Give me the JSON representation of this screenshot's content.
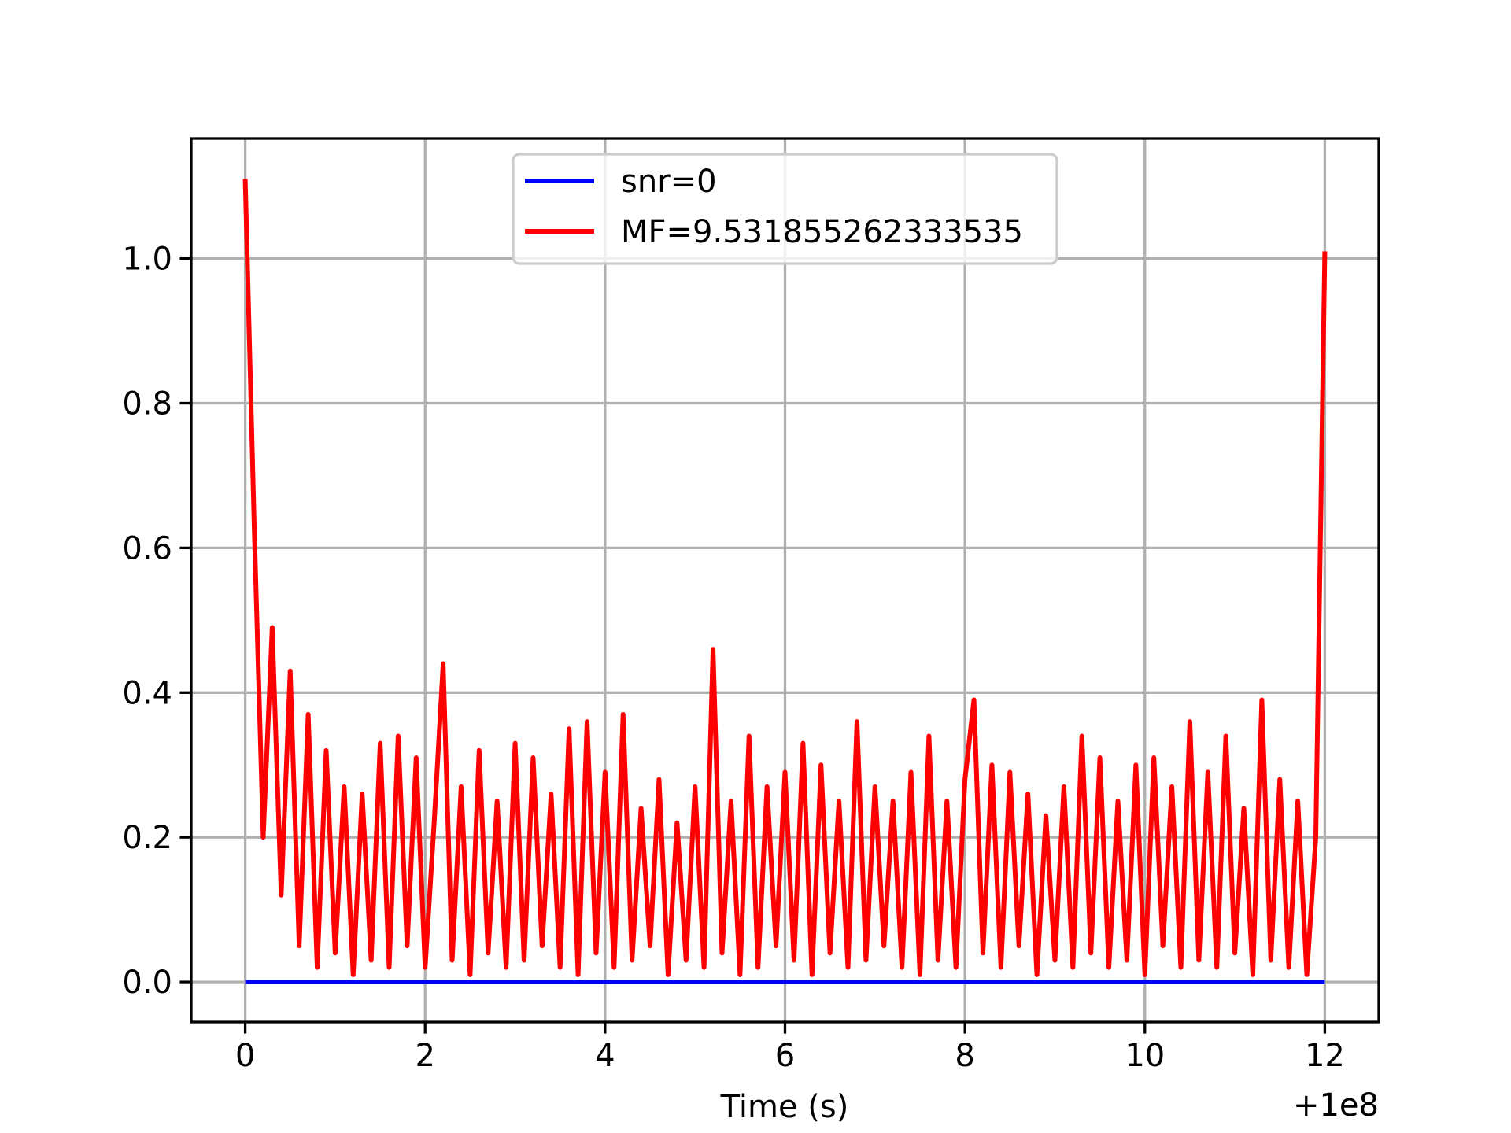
{
  "chart_data": {
    "type": "line",
    "xlabel": "Time (s)",
    "x_offset_label": "+1e8",
    "xlim": [
      -0.6,
      12.6
    ],
    "ylim": [
      -0.0554,
      1.166
    ],
    "xticks": [
      0,
      2,
      4,
      6,
      8,
      10,
      12
    ],
    "yticks": [
      {
        "value": 0,
        "label": "0.0"
      },
      0.2,
      0.4,
      0.6,
      0.8,
      {
        "value": 1,
        "label": "1.0"
      }
    ],
    "grid": true,
    "legend": "upper center",
    "series": [
      {
        "name": "snr=0",
        "color": "#0000ff",
        "x": [
          0,
          12
        ],
        "values": [
          0,
          0
        ]
      },
      {
        "name": "MF=9.531855262333535",
        "color": "#ff0000",
        "x": [
          0,
          0.1,
          0.2,
          0.3,
          0.4,
          0.5,
          0.6,
          0.7,
          0.8,
          0.9,
          1,
          1.1,
          1.2,
          1.3,
          1.4,
          1.5,
          1.6,
          1.7,
          1.8,
          1.9,
          2,
          2.1,
          2.2,
          2.3,
          2.4,
          2.5,
          2.6,
          2.7,
          2.8,
          2.9,
          3,
          3.1,
          3.2,
          3.3,
          3.4,
          3.5,
          3.6,
          3.7,
          3.8,
          3.9,
          4,
          4.1,
          4.2,
          4.3,
          4.4,
          4.5,
          4.6,
          4.7,
          4.8,
          4.9,
          5,
          5.1,
          5.2,
          5.3,
          5.4,
          5.5,
          5.6,
          5.7,
          5.8,
          5.9,
          6,
          6.1,
          6.2,
          6.3,
          6.4,
          6.5,
          6.6,
          6.7,
          6.8,
          6.9,
          7,
          7.1,
          7.2,
          7.3,
          7.4,
          7.5,
          7.6,
          7.7,
          7.8,
          7.9,
          8,
          8.1,
          8.2,
          8.3,
          8.4,
          8.5,
          8.6,
          8.7,
          8.8,
          8.9,
          9,
          9.1,
          9.2,
          9.3,
          9.4,
          9.5,
          9.6,
          9.7,
          9.8,
          9.9,
          10,
          10.1,
          10.2,
          10.3,
          10.4,
          10.5,
          10.6,
          10.7,
          10.8,
          10.9,
          11,
          11.1,
          11.2,
          11.3,
          11.4,
          11.5,
          11.6,
          11.7,
          11.8,
          11.9,
          12
        ],
        "values": [
          1.11,
          0.63,
          0.2,
          0.49,
          0.12,
          0.43,
          0.05,
          0.37,
          0.02,
          0.32,
          0.04,
          0.27,
          0.01,
          0.26,
          0.03,
          0.33,
          0.02,
          0.34,
          0.05,
          0.31,
          0.02,
          0.22,
          0.44,
          0.03,
          0.27,
          0.01,
          0.32,
          0.04,
          0.25,
          0.02,
          0.33,
          0.03,
          0.31,
          0.05,
          0.26,
          0.02,
          0.35,
          0.01,
          0.36,
          0.04,
          0.29,
          0.02,
          0.37,
          0.03,
          0.24,
          0.05,
          0.28,
          0.01,
          0.22,
          0.03,
          0.27,
          0.02,
          0.46,
          0.04,
          0.25,
          0.01,
          0.34,
          0.02,
          0.27,
          0.05,
          0.29,
          0.03,
          0.33,
          0.01,
          0.3,
          0.04,
          0.25,
          0.02,
          0.36,
          0.03,
          0.27,
          0.05,
          0.25,
          0.02,
          0.29,
          0.01,
          0.34,
          0.03,
          0.25,
          0.02,
          0.28,
          0.39,
          0.04,
          0.3,
          0.02,
          0.29,
          0.05,
          0.26,
          0.01,
          0.23,
          0.03,
          0.27,
          0.02,
          0.34,
          0.04,
          0.31,
          0.02,
          0.25,
          0.03,
          0.3,
          0.01,
          0.31,
          0.05,
          0.27,
          0.02,
          0.36,
          0.03,
          0.29,
          0.02,
          0.34,
          0.04,
          0.24,
          0.01,
          0.39,
          0.03,
          0.28,
          0.02,
          0.25,
          0.01,
          0.2,
          1.01
        ]
      }
    ]
  }
}
